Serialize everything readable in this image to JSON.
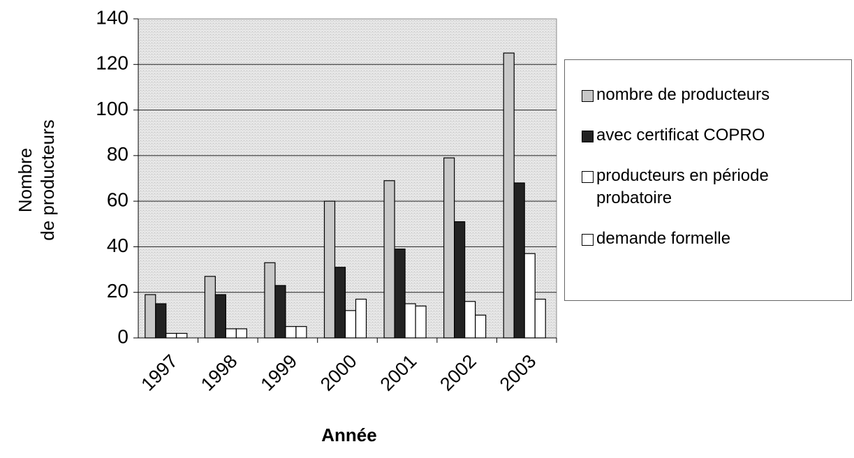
{
  "chart_data": {
    "type": "bar",
    "x_label": "Année",
    "y_label": [
      "Nombre",
      "de producteurs"
    ],
    "categories": [
      "1997",
      "1998",
      "1999",
      "2000",
      "2001",
      "2002",
      "2003"
    ],
    "series": [
      {
        "name": "nombre de producteurs",
        "color": "#c8c8c8",
        "values": [
          19,
          27,
          33,
          60,
          69,
          79,
          125
        ]
      },
      {
        "name": "avec certificat COPRO",
        "color": "#222222",
        "values": [
          15,
          19,
          23,
          31,
          39,
          51,
          68
        ]
      },
      {
        "name": "producteurs en période probatoire",
        "color": "#ffffff",
        "values": [
          2,
          4,
          5,
          12,
          15,
          16,
          37
        ]
      },
      {
        "name": "demande formelle",
        "color": "#ffffff",
        "values": [
          2,
          4,
          5,
          17,
          14,
          10,
          17
        ]
      }
    ],
    "ylim": [
      0,
      140
    ],
    "yticks": [
      0,
      20,
      40,
      60,
      80,
      100,
      120,
      140
    ],
    "grid": true
  }
}
